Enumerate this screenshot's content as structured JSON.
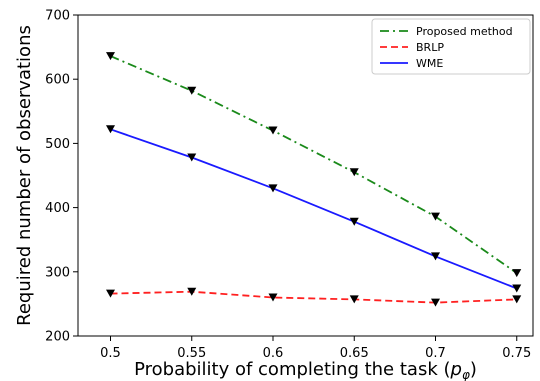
{
  "chart_data": {
    "type": "line",
    "title": "",
    "xlabel": "Probability of completing the task (",
    "xlabel_symbol": "p",
    "xlabel_subscript": "φ",
    "xlabel_tail": ")",
    "ylabel": "Required number of observations",
    "x": [
      0.5,
      0.55,
      0.6,
      0.65,
      0.7,
      0.75
    ],
    "x_tick_labels": [
      "0.5",
      "0.55",
      "0.6",
      "0.65",
      "0.7",
      "0.75"
    ],
    "xlim": [
      0.48,
      0.76
    ],
    "ylim": [
      200,
      700
    ],
    "y_ticks": [
      200,
      300,
      400,
      500,
      600,
      700
    ],
    "grid": false,
    "legend_position": "top-right",
    "series": [
      {
        "name": "Proposed method",
        "values": [
          636,
          582,
          520,
          455,
          386,
          298
        ],
        "color": "#1a8a1a",
        "dash": "dashdot"
      },
      {
        "name": "BRLP",
        "values": [
          266,
          269,
          260,
          257,
          252,
          257
        ],
        "color": "#ff2020",
        "dash": "dashed"
      },
      {
        "name": "WME",
        "values": [
          522,
          478,
          430,
          378,
          324,
          274
        ],
        "color": "#1a1aff",
        "dash": "solid"
      }
    ]
  }
}
